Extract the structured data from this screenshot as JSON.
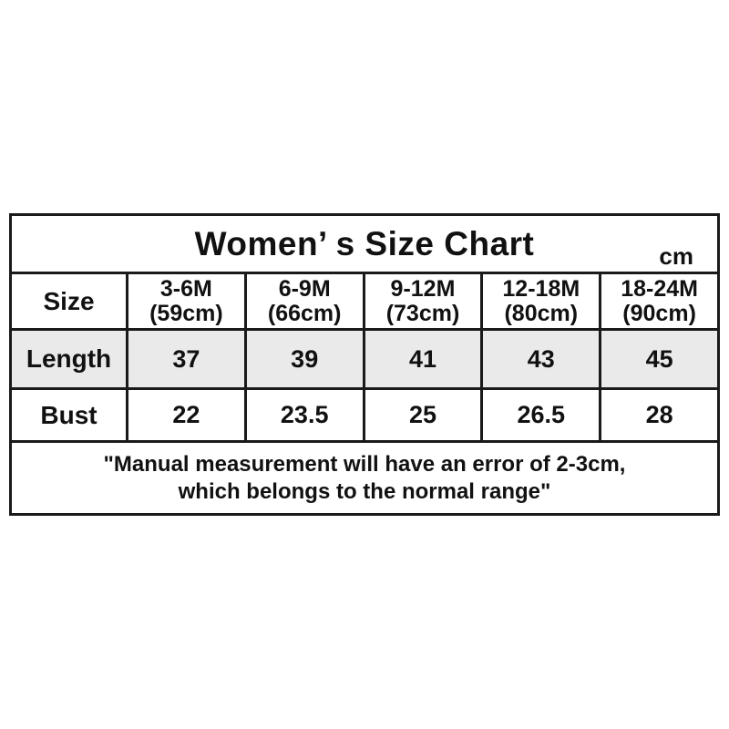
{
  "chart_data": {
    "type": "table",
    "title": "Women’ s Size Chart",
    "unit": "cm",
    "corner_label": "Size",
    "columns": [
      {
        "age": "3-6M",
        "height": "(59cm)"
      },
      {
        "age": "6-9M",
        "height": "(66cm)"
      },
      {
        "age": "9-12M",
        "height": "(73cm)"
      },
      {
        "age": "12-18M",
        "height": "(80cm)"
      },
      {
        "age": "18-24M",
        "height": "(90cm)"
      }
    ],
    "rows": [
      {
        "label": "Length",
        "values": [
          "37",
          "39",
          "41",
          "43",
          "45"
        ]
      },
      {
        "label": "Bust",
        "values": [
          "22",
          "23.5",
          "25",
          "26.5",
          "28"
        ]
      }
    ],
    "note_lines": [
      "\"Manual measurement will have an error of 2-3cm,",
      "which belongs to the normal range\""
    ],
    "colors": {
      "title_bg": "#eaeaea",
      "alt_row_bg": "#eaeaea",
      "border": "#1a1a1a",
      "text": "#111111",
      "page_bg": "#ffffff"
    }
  }
}
